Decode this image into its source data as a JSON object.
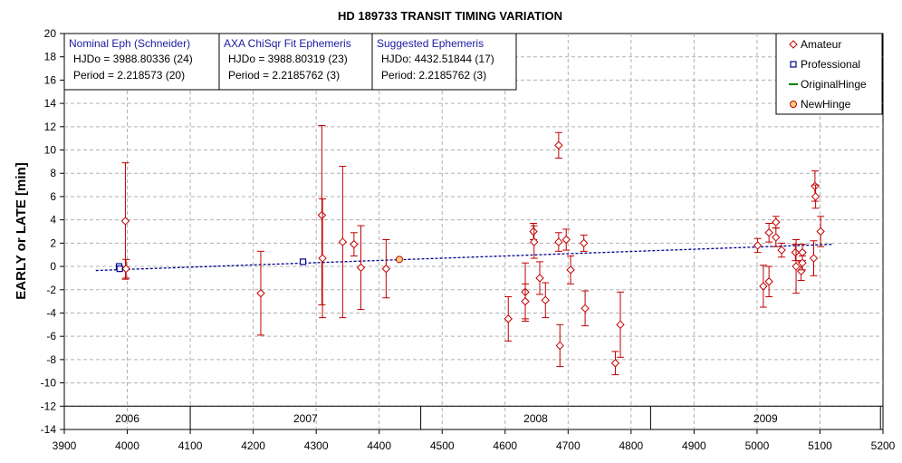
{
  "chart_data": {
    "type": "scatter",
    "title": "HD 189733 TRANSIT TIMING VARIATION",
    "ylabel": "EARLY or LATE [min]",
    "xlabel": "",
    "xlim": [
      3900,
      5200
    ],
    "ylim": [
      -14,
      20
    ],
    "x_ticks": [
      "3900",
      "4000",
      "4100",
      "4200",
      "4300",
      "4400",
      "4500",
      "4600",
      "4700",
      "4800",
      "4900",
      "5000",
      "5100",
      "5200"
    ],
    "y_ticks": [
      "20",
      "18",
      "16",
      "14",
      "12",
      "10",
      "8",
      "6",
      "4",
      "2",
      "0",
      "-2",
      "-4",
      "-6",
      "-8",
      "-10",
      "-12",
      "-14"
    ],
    "grid": true,
    "legend_position": "top-right",
    "years": [
      {
        "label": "2006",
        "start": 3900,
        "end": 4100
      },
      {
        "label": "2007",
        "start": 4100,
        "end": 4466
      },
      {
        "label": "2008",
        "start": 4466,
        "end": 4831
      },
      {
        "label": "2009",
        "start": 4831,
        "end": 5196
      }
    ],
    "info_boxes": [
      {
        "title": "Nominal Eph (Schneider)",
        "line1": "HJDo = 3988.80336 (24)",
        "line2": "Period = 2.218573 (20)"
      },
      {
        "title": "AXA ChiSqr Fit Ephemeris",
        "line1": "HJDo = 3988.80319 (23)",
        "line2": "Period = 2.2185762 (3)"
      },
      {
        "title": "Suggested Ephemeris",
        "line1": "HJDo:  4432.51844 (17)",
        "line2": "Period: 2.2185762 (3)"
      }
    ],
    "series": [
      {
        "name": "Amateur",
        "color": "#c00000",
        "marker": "diamond",
        "points": [
          {
            "x": 3997,
            "y": 3.9,
            "err": 5.0
          },
          {
            "x": 3998,
            "y": -0.2,
            "err": 0.8
          },
          {
            "x": 4212,
            "y": -2.3,
            "err": 3.6
          },
          {
            "x": 4309,
            "y": 4.4,
            "err": 7.7
          },
          {
            "x": 4310,
            "y": 0.7,
            "err": 5.1
          },
          {
            "x": 4342,
            "y": 2.1,
            "err": 6.5
          },
          {
            "x": 4360,
            "y": 1.9,
            "err": 1.0
          },
          {
            "x": 4371,
            "y": -0.1,
            "err": 3.6
          },
          {
            "x": 4411,
            "y": -0.2,
            "err": 2.5
          },
          {
            "x": 4605,
            "y": -4.5,
            "err": 1.9
          },
          {
            "x": 4632,
            "y": -2.2,
            "err": 2.5
          },
          {
            "x": 4632,
            "y": -3.0,
            "err": 1.5
          },
          {
            "x": 4645,
            "y": 3.0,
            "err": 0.7
          },
          {
            "x": 4646,
            "y": 2.1,
            "err": 1.4
          },
          {
            "x": 4655,
            "y": -1.0,
            "err": 1.4
          },
          {
            "x": 4664,
            "y": -2.9,
            "err": 1.5
          },
          {
            "x": 4685,
            "y": 10.4,
            "err": 1.1
          },
          {
            "x": 4685,
            "y": 2.1,
            "err": 0.8
          },
          {
            "x": 4687,
            "y": -6.8,
            "err": 1.8
          },
          {
            "x": 4697,
            "y": 2.3,
            "err": 0.9
          },
          {
            "x": 4704,
            "y": -0.3,
            "err": 1.2
          },
          {
            "x": 4725,
            "y": 2.0,
            "err": 0.7
          },
          {
            "x": 4727,
            "y": -3.6,
            "err": 1.5
          },
          {
            "x": 4775,
            "y": -8.3,
            "err": 1.0
          },
          {
            "x": 4783,
            "y": -5.0,
            "err": 2.8
          },
          {
            "x": 5001,
            "y": 1.8,
            "err": 0.6
          },
          {
            "x": 5010,
            "y": -1.7,
            "err": 1.8
          },
          {
            "x": 5019,
            "y": -1.3,
            "err": 1.3
          },
          {
            "x": 5019,
            "y": 2.9,
            "err": 0.8
          },
          {
            "x": 5030,
            "y": 3.8,
            "err": 0.5
          },
          {
            "x": 5030,
            "y": 2.5,
            "err": 0.8
          },
          {
            "x": 5039,
            "y": 1.4,
            "err": 0.6
          },
          {
            "x": 5061,
            "y": 1.2,
            "err": 0.7
          },
          {
            "x": 5062,
            "y": 0.0,
            "err": 2.3
          },
          {
            "x": 5070,
            "y": -0.4,
            "err": 0.8
          },
          {
            "x": 5072,
            "y": 1.2,
            "err": 0.7
          },
          {
            "x": 5072,
            "y": 0.3,
            "err": 0.6
          },
          {
            "x": 5090,
            "y": 0.7,
            "err": 1.5
          },
          {
            "x": 5092,
            "y": 6.9,
            "err": 1.3
          },
          {
            "x": 5093,
            "y": 6.0,
            "err": 1.0
          },
          {
            "x": 5101,
            "y": 3.0,
            "err": 1.3
          }
        ]
      },
      {
        "name": "Professional",
        "color": "#00008b",
        "marker": "square",
        "points": [
          {
            "x": 3987,
            "y": 0.0
          },
          {
            "x": 3988,
            "y": -0.2
          },
          {
            "x": 4279,
            "y": 0.4
          }
        ]
      },
      {
        "name": "OriginalHinge",
        "color": "#008000",
        "marker": "line",
        "points": []
      },
      {
        "name": "NewHinge",
        "color": "#c00000",
        "marker": "circle",
        "points": [
          {
            "x": 4432,
            "y": 0.6
          }
        ]
      }
    ],
    "trend_line": {
      "color": "#00008b",
      "x": [
        3950,
        5120
      ],
      "y": [
        -0.35,
        1.9
      ]
    }
  }
}
